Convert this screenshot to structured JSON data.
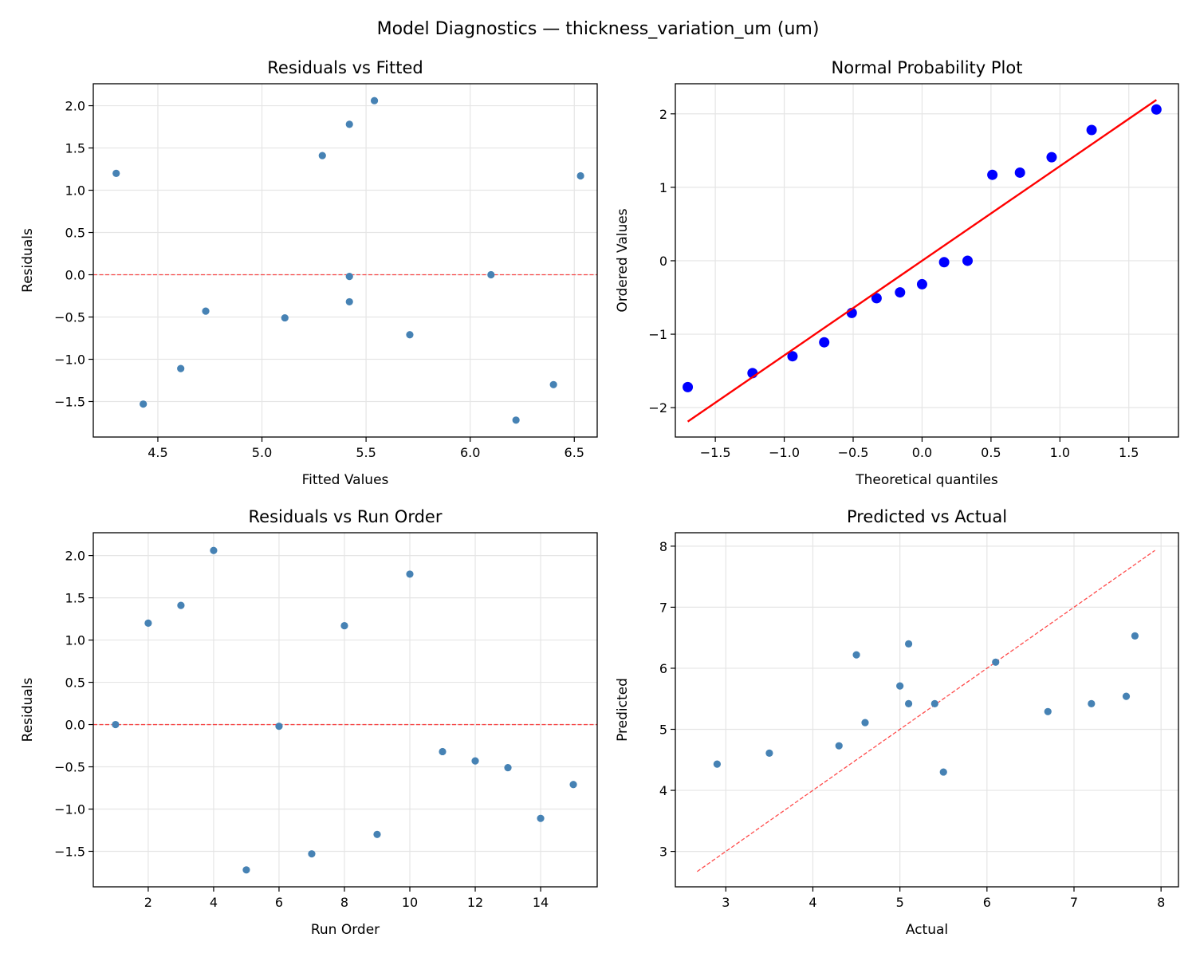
{
  "figure_title": "Model Diagnostics — thickness_variation_um (um)",
  "colors": {
    "point": "#4682b4",
    "ref_line": "#ff0000",
    "qq_point": "#0000ff",
    "grid": "#e5e5e5"
  },
  "chart_data": [
    {
      "type": "scatter",
      "title": "Residuals vs Fitted",
      "xlabel": "Fitted Values",
      "ylabel": "Residuals",
      "xlim": [
        4.19,
        6.61
      ],
      "ylim": [
        -1.92,
        2.26
      ],
      "xticks": [
        4.5,
        5.0,
        5.5,
        6.0,
        6.5
      ],
      "xtick_labels": [
        "4.5",
        "5.0",
        "5.5",
        "6.0",
        "6.5"
      ],
      "yticks": [
        -1.5,
        -1.0,
        -0.5,
        0.0,
        0.5,
        1.0,
        1.5,
        2.0
      ],
      "ytick_labels": [
        "−1.5",
        "−1.0",
        "−0.5",
        "0.0",
        "0.5",
        "1.0",
        "1.5",
        "2.0"
      ],
      "grid": true,
      "x": [
        6.1,
        4.3,
        5.29,
        5.54,
        6.22,
        5.42,
        4.43,
        6.53,
        6.4,
        5.42,
        5.42,
        4.73,
        5.11,
        4.61,
        5.71
      ],
      "y": [
        0.0,
        1.2,
        1.41,
        2.06,
        -1.72,
        -0.02,
        -1.53,
        1.17,
        -1.3,
        1.78,
        -0.32,
        -0.43,
        -0.51,
        -1.11,
        -0.71
      ],
      "hline": 0
    },
    {
      "type": "scatter",
      "title": "Normal Probability Plot",
      "xlabel": "Theoretical quantiles",
      "ylabel": "Ordered Values",
      "xlim": [
        -1.79,
        1.86
      ],
      "ylim": [
        -2.4,
        2.41
      ],
      "xticks": [
        -1.5,
        -1.0,
        -0.5,
        0.0,
        0.5,
        1.0,
        1.5
      ],
      "xtick_labels": [
        "−1.5",
        "−1.0",
        "−0.5",
        "0.0",
        "0.5",
        "1.0",
        "1.5"
      ],
      "yticks": [
        -2,
        -1,
        0,
        1,
        2
      ],
      "ytick_labels": [
        "−2",
        "−1",
        "0",
        "1",
        "2"
      ],
      "grid": true,
      "x": [
        -1.7,
        -1.23,
        -0.94,
        -0.71,
        -0.51,
        -0.33,
        -0.16,
        0.0,
        0.16,
        0.33,
        0.51,
        0.71,
        0.94,
        1.23,
        1.7
      ],
      "y": [
        -1.72,
        -1.53,
        -1.3,
        -1.11,
        -0.71,
        -0.51,
        -0.43,
        -0.32,
        -0.02,
        0.0,
        1.17,
        1.2,
        1.41,
        1.78,
        2.06
      ],
      "fit_line": {
        "x": [
          -1.7,
          1.7
        ],
        "y": [
          -2.19,
          2.19
        ]
      }
    },
    {
      "type": "scatter",
      "title": "Residuals vs Run Order",
      "xlabel": "Run Order",
      "ylabel": "Residuals",
      "xlim": [
        0.32,
        15.73
      ],
      "ylim": [
        -1.92,
        2.27
      ],
      "xticks": [
        2,
        4,
        6,
        8,
        10,
        12,
        14
      ],
      "xtick_labels": [
        "2",
        "4",
        "6",
        "8",
        "10",
        "12",
        "14"
      ],
      "yticks": [
        -1.5,
        -1.0,
        -0.5,
        0.0,
        0.5,
        1.0,
        1.5,
        2.0
      ],
      "ytick_labels": [
        "−1.5",
        "−1.0",
        "−0.5",
        "0.0",
        "0.5",
        "1.0",
        "1.5",
        "2.0"
      ],
      "grid": true,
      "x": [
        1,
        2,
        3,
        4,
        5,
        6,
        7,
        8,
        9,
        10,
        11,
        12,
        13,
        14,
        15
      ],
      "y": [
        0.0,
        1.2,
        1.41,
        2.06,
        -1.72,
        -0.02,
        -1.53,
        1.17,
        -1.3,
        1.78,
        -0.32,
        -0.43,
        -0.51,
        -1.11,
        -0.71
      ],
      "hline": 0
    },
    {
      "type": "scatter",
      "title": "Predicted vs Actual",
      "xlabel": "Actual",
      "ylabel": "Predicted",
      "xlim": [
        2.42,
        8.2
      ],
      "ylim": [
        2.42,
        8.22
      ],
      "xticks": [
        3,
        4,
        5,
        6,
        7,
        8
      ],
      "xtick_labels": [
        "3",
        "4",
        "5",
        "6",
        "7",
        "8"
      ],
      "yticks": [
        3,
        4,
        5,
        6,
        7,
        8
      ],
      "ytick_labels": [
        "3",
        "4",
        "5",
        "6",
        "7",
        "8"
      ],
      "grid": true,
      "x": [
        6.1,
        5.5,
        6.7,
        7.6,
        4.5,
        5.4,
        2.9,
        7.7,
        5.1,
        7.2,
        5.1,
        4.3,
        4.6,
        3.5,
        5.0
      ],
      "y": [
        6.1,
        4.3,
        5.29,
        5.54,
        6.22,
        5.42,
        4.43,
        6.53,
        6.4,
        5.42,
        5.42,
        4.73,
        5.11,
        4.61,
        5.71
      ],
      "diag_line": [
        2.67,
        7.93
      ]
    }
  ]
}
